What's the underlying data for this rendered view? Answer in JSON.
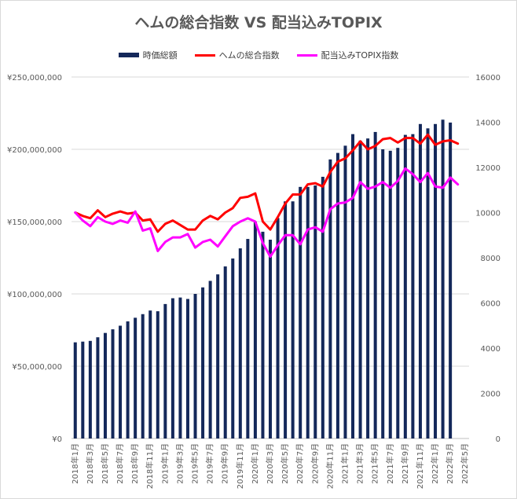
{
  "chart_data": {
    "type": "bar+line",
    "title": "ヘムの総合指数 VS 配当込みTOPIX",
    "categories": [
      "2018年1月",
      "2018年2月",
      "2018年3月",
      "2018年4月",
      "2018年5月",
      "2018年6月",
      "2018年7月",
      "2018年8月",
      "2018年9月",
      "2018年10月",
      "2018年11月",
      "2018年12月",
      "2019年1月",
      "2019年2月",
      "2019年3月",
      "2019年4月",
      "2019年5月",
      "2019年6月",
      "2019年7月",
      "2019年8月",
      "2019年9月",
      "2019年10月",
      "2019年11月",
      "2019年12月",
      "2020年1月",
      "2020年2月",
      "2020年3月",
      "2020年4月",
      "2020年5月",
      "2020年6月",
      "2020年7月",
      "2020年8月",
      "2020年9月",
      "2020年10月",
      "2020年11月",
      "2020年12月",
      "2021年1月",
      "2021年2月",
      "2021年3月",
      "2021年4月",
      "2021年5月",
      "2021年6月",
      "2021年7月",
      "2021年8月",
      "2021年9月",
      "2021年10月",
      "2021年11月",
      "2021年12月",
      "2022年1月",
      "2022年2月",
      "2022年3月",
      "2022年4月",
      "2022年5月"
    ],
    "x_tick_labels": [
      "2018年1月",
      "2018年3月",
      "2018年5月",
      "2018年7月",
      "2018年9月",
      "2018年11月",
      "2019年1月",
      "2019年3月",
      "2019年5月",
      "2019年7月",
      "2019年9月",
      "2019年11月",
      "2020年1月",
      "2020年3月",
      "2020年5月",
      "2020年7月",
      "2020年9月",
      "2020年11月",
      "2021年1月",
      "2021年3月",
      "2021年5月",
      "2021年7月",
      "2021年9月",
      "2021年11月",
      "2022年1月",
      "2022年3月",
      "2022年5月"
    ],
    "y_left": {
      "ylim": [
        0,
        250000000
      ],
      "ticks": [
        "¥0",
        "¥50,000,000",
        "¥100,000,000",
        "¥150,000,000",
        "¥200,000,000",
        "¥250,000,000"
      ]
    },
    "y_right": {
      "ylim": [
        0,
        16000
      ],
      "ticks": [
        "0",
        "2000",
        "4000",
        "6000",
        "8000",
        "10000",
        "12000",
        "14000",
        "16000"
      ]
    },
    "grid": true,
    "legend_position": "top",
    "series": [
      {
        "name": "時価総額",
        "kind": "bar",
        "axis": "left",
        "color": "#14285a",
        "values": [
          66500000,
          67000000,
          67500000,
          70000000,
          73000000,
          75500000,
          78000000,
          81000000,
          83500000,
          86000000,
          88500000,
          88000000,
          93000000,
          97000000,
          97500000,
          96500000,
          100000000,
          104500000,
          109000000,
          113500000,
          119000000,
          124500000,
          131500000,
          138000000,
          150000000,
          143000000,
          137500000,
          152500000,
          164000000,
          164000000,
          174000000,
          174000000,
          175000000,
          181000000,
          193000000,
          197500000,
          202500000,
          210500000,
          206000000,
          207500000,
          212000000,
          200000000,
          199000000,
          201000000,
          210000000,
          210500000,
          217500000,
          214500000,
          217500000,
          220500000,
          218500000,
          null,
          null
        ]
      },
      {
        "name": "ヘムの総合指数",
        "kind": "line",
        "axis": "right",
        "color": "#ff0000",
        "values": [
          10000,
          9850,
          9750,
          10100,
          9800,
          9950,
          10050,
          9950,
          10000,
          9650,
          9700,
          9150,
          9500,
          9650,
          9450,
          9250,
          9250,
          9650,
          9850,
          9700,
          10000,
          10200,
          10650,
          10700,
          10850,
          9600,
          9250,
          9800,
          10400,
          10800,
          10800,
          11250,
          11300,
          11150,
          11800,
          12250,
          12400,
          12750,
          13150,
          12800,
          12950,
          13250,
          13300,
          13100,
          13300,
          13300,
          13050,
          13450,
          13000,
          13150,
          13200,
          13050,
          null
        ]
      },
      {
        "name": "配当込みTOPIX指数",
        "kind": "line",
        "axis": "right",
        "color": "#ff00ff",
        "values": [
          10000,
          9650,
          9400,
          9800,
          9600,
          9500,
          9650,
          9550,
          10050,
          9200,
          9300,
          8300,
          8700,
          8900,
          8900,
          9050,
          8450,
          8700,
          8800,
          8500,
          8950,
          9400,
          9600,
          9750,
          9600,
          8650,
          8050,
          8550,
          9000,
          9000,
          8600,
          9250,
          9350,
          9150,
          10150,
          10400,
          10450,
          10650,
          11350,
          11050,
          11150,
          11350,
          11100,
          11400,
          11950,
          11700,
          11350,
          11750,
          11150,
          11100,
          11550,
          11250,
          null
        ]
      }
    ]
  }
}
